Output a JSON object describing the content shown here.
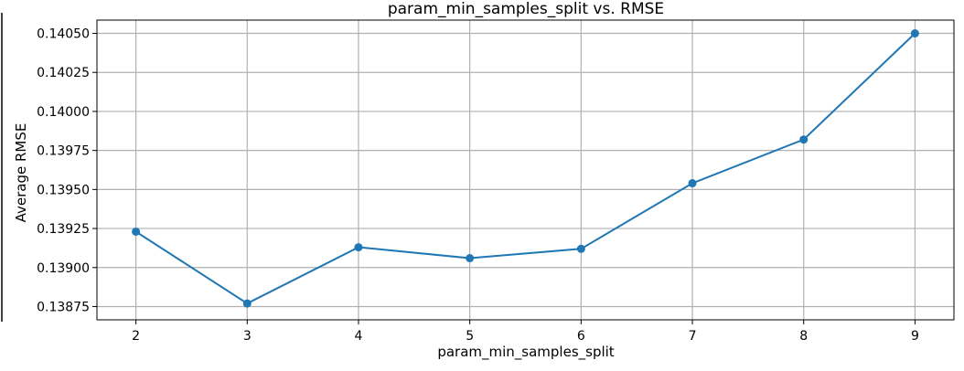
{
  "chart_data": {
    "type": "line",
    "title": "param_min_samples_split vs. RMSE",
    "xlabel": "param_min_samples_split",
    "ylabel": "Average RMSE",
    "x": [
      2,
      3,
      4,
      5,
      6,
      7,
      8,
      9
    ],
    "series": [
      {
        "values": [
          0.13923,
          0.13877,
          0.13913,
          0.13906,
          0.13912,
          0.13954,
          0.13982,
          0.1405
        ]
      }
    ],
    "xticks": [
      "2",
      "3",
      "4",
      "5",
      "6",
      "7",
      "8",
      "9"
    ],
    "yticks": [
      "0.13875",
      "0.13900",
      "0.13925",
      "0.13950",
      "0.13975",
      "0.14000",
      "0.14025",
      "0.14050"
    ],
    "xlim": [
      1.65,
      9.35
    ],
    "ylim": [
      0.138665,
      0.140585
    ],
    "grid": true,
    "line_color": "#1f77b4",
    "marker": "circle"
  }
}
